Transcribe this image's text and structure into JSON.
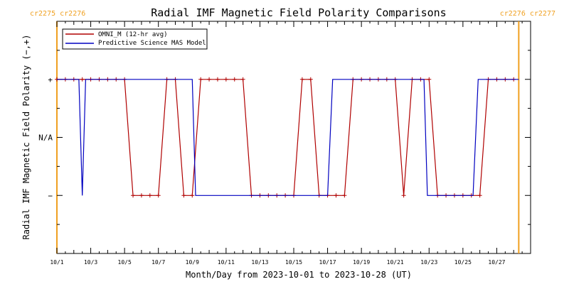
{
  "chart_data": {
    "type": "line",
    "title": "Radial IMF Magnetic Field Polarity Comparisons",
    "xlabel": "Month/Day from 2023-10-01 to 2023-10-28 (UT)",
    "ylabel": "Radial IMF Magnetic Field Polarity (−,+)",
    "xlim": [
      0,
      28
    ],
    "ylim": [
      -2,
      2
    ],
    "x_ticks": [
      0,
      2,
      4,
      6,
      8,
      10,
      12,
      14,
      16,
      18,
      20,
      22,
      24,
      26
    ],
    "x_tick_labels": [
      "10/1",
      "10/3",
      "10/5",
      "10/7",
      "10/9",
      "10/11",
      "10/13",
      "10/15",
      "10/17",
      "10/19",
      "10/21",
      "10/23",
      "10/25",
      "10/27"
    ],
    "y_ticks": [
      1,
      0,
      -1
    ],
    "y_tick_labels": [
      "+",
      "N/A",
      "−"
    ],
    "carrington_markers": [
      {
        "x": 0.0,
        "label": "cr2275 cr2276",
        "side": "left"
      },
      {
        "x": 27.3,
        "label": "cr2276 cr2277",
        "side": "right"
      }
    ],
    "legend_position": "top-left",
    "series": [
      {
        "name": "OMNI_M (12-hr avg)",
        "color": "#b00000",
        "marker": "plus",
        "x": [
          0.0,
          0.5,
          1.0,
          1.5,
          2.0,
          2.5,
          3.0,
          3.5,
          4.0,
          4.5,
          5.0,
          5.5,
          6.0,
          6.5,
          7.0,
          7.5,
          8.0,
          8.5,
          9.0,
          9.5,
          10.0,
          10.5,
          11.0,
          11.5,
          12.0,
          12.5,
          13.0,
          13.5,
          14.0,
          14.5,
          15.0,
          15.5,
          16.0,
          16.5,
          17.0,
          17.5,
          18.0,
          18.5,
          19.0,
          19.5,
          20.0,
          20.5,
          21.0,
          21.5,
          22.0,
          22.5,
          23.0,
          23.5,
          24.0,
          24.5,
          25.0,
          25.5,
          26.0,
          26.5,
          27.0
        ],
        "y": [
          1,
          1,
          1,
          1,
          1,
          1,
          1,
          1,
          1,
          -1,
          -1,
          -1,
          -1,
          1,
          1,
          -1,
          -1,
          1,
          1,
          1,
          1,
          1,
          1,
          -1,
          -1,
          -1,
          -1,
          -1,
          -1,
          1,
          1,
          -1,
          -1,
          -1,
          -1,
          1,
          1,
          1,
          1,
          1,
          1,
          -1,
          1,
          1,
          1,
          -1,
          -1,
          -1,
          -1,
          -1,
          -1,
          1,
          1,
          1,
          1
        ]
      },
      {
        "name": "Predictive Science MAS Model",
        "color": "#0000c0",
        "marker": "none",
        "x": [
          0.0,
          1.3,
          1.5,
          1.7,
          8.0,
          8.2,
          16.0,
          16.3,
          21.7,
          21.9,
          24.6,
          24.9,
          27.3
        ],
        "y": [
          1,
          1,
          -1,
          1,
          1,
          -1,
          -1,
          1,
          1,
          -1,
          -1,
          1,
          1
        ]
      }
    ]
  }
}
